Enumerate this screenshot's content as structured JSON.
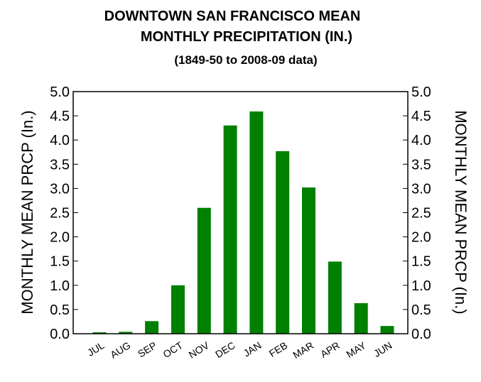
{
  "chart_data": {
    "type": "bar",
    "title_line1": "DOWNTOWN SAN FRANCISCO MEAN",
    "title_line2": "MONTHLY PRECIPITATION (IN.)",
    "subtitle": "(1849-50 to 2008-09 data)",
    "ylabel_left": "MONTHLY MEAN PRCP (In.)",
    "ylabel_right": "MONTHLY MEAN PRCP (In.)",
    "xlabel": "",
    "categories": [
      "JUL",
      "AUG",
      "SEP",
      "OCT",
      "NOV",
      "DEC",
      "JAN",
      "FEB",
      "MAR",
      "APR",
      "MAY",
      "JUN"
    ],
    "values": [
      0.03,
      0.04,
      0.26,
      1.0,
      2.6,
      4.3,
      4.59,
      3.77,
      3.02,
      1.49,
      0.63,
      0.16
    ],
    "ylim": [
      0,
      5.0
    ],
    "yticks": [
      "0.0",
      "0.5",
      "1.0",
      "1.5",
      "2.0",
      "2.5",
      "3.0",
      "3.5",
      "4.0",
      "4.5",
      "5.0"
    ],
    "grid": false,
    "legend": "none",
    "bar_color": "#008000"
  }
}
